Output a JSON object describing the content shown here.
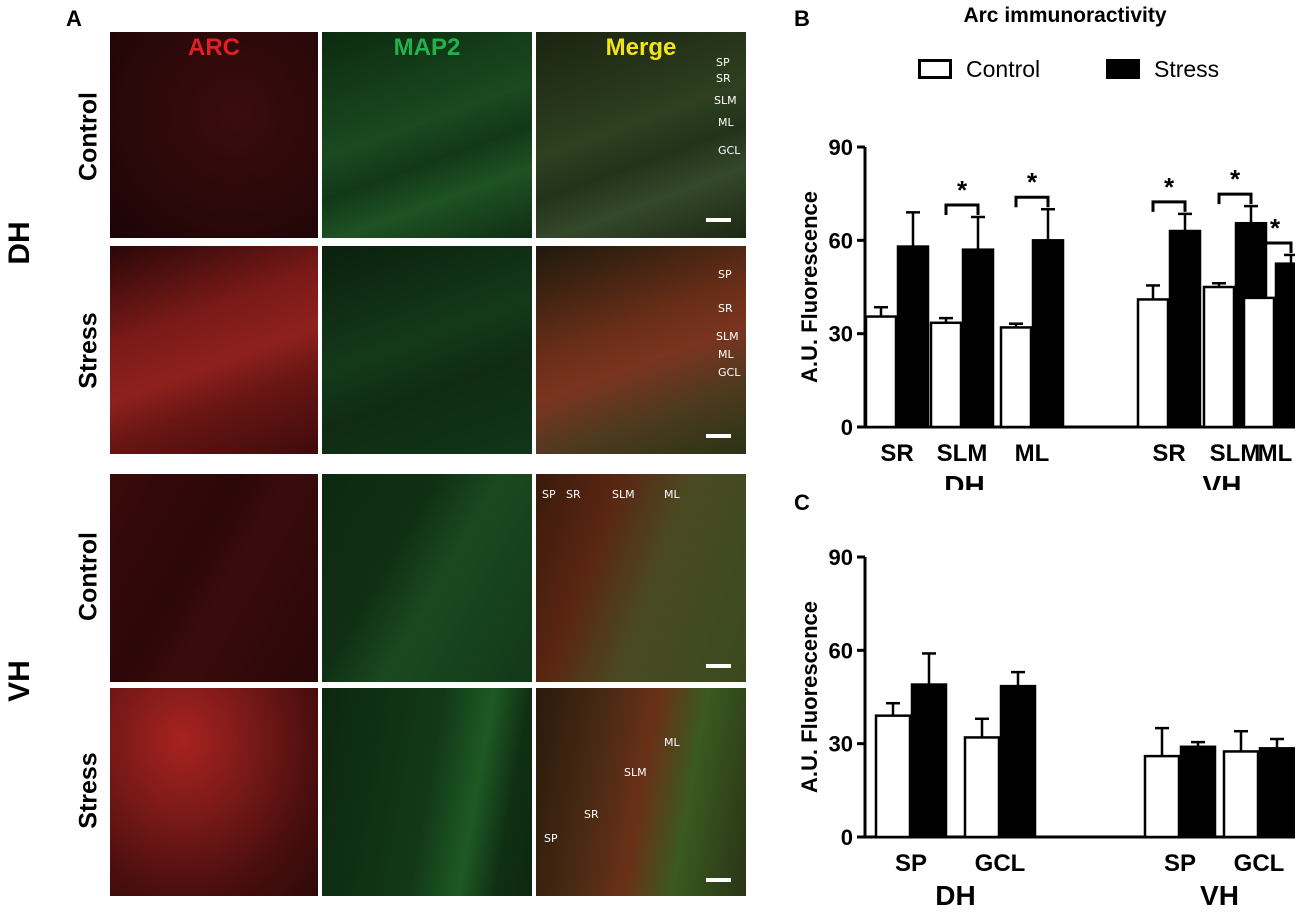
{
  "panel_a": {
    "letter": "A",
    "channels": [
      {
        "label": "ARC",
        "color": "#e31e24"
      },
      {
        "label": "MAP2",
        "color": "#22b14c"
      },
      {
        "label": "Merge",
        "color": "#f2e31b"
      }
    ],
    "groups": [
      {
        "label": "DH",
        "conditions": [
          "Control",
          "Stress"
        ]
      },
      {
        "label": "VH",
        "conditions": [
          "Control",
          "Stress"
        ]
      }
    ],
    "layer_labels": {
      "dh_control": [
        "SP",
        "SR",
        "SLM",
        "ML",
        "GCL"
      ],
      "dh_stress": [
        "SP",
        "SR",
        "SLM",
        "ML",
        "GCL"
      ],
      "vh_control": [
        "SP",
        "SR",
        "SLM",
        "ML"
      ],
      "vh_stress": [
        "ML",
        "SLM",
        "SR",
        "SP"
      ]
    }
  },
  "panel_b_letter": "B",
  "panel_c_letter": "C",
  "figure_title": "Arc immunoractivity",
  "legend": [
    {
      "label": "Control",
      "fill": "#ffffff"
    },
    {
      "label": "Stress",
      "fill": "#000000"
    }
  ],
  "chart_data": [
    {
      "type": "bar",
      "panel": "B",
      "ylabel": "A.U. Fluorescence",
      "ylim": [
        0,
        90
      ],
      "yticks": [
        0,
        30,
        60,
        90
      ],
      "groups": [
        {
          "label": "DH",
          "categories": [
            "SR",
            "SLM",
            "ML"
          ]
        },
        {
          "label": "VH",
          "categories": [
            "SR",
            "SLM",
            "ML"
          ]
        }
      ],
      "series": [
        {
          "name": "Control",
          "values": [
            35.5,
            33.5,
            32,
            41,
            45,
            41.5
          ],
          "errors": [
            3,
            1.5,
            1.2,
            4.5,
            1.2,
            2.2
          ]
        },
        {
          "name": "Stress",
          "values": [
            58,
            57,
            60,
            63,
            65.5,
            52.5
          ],
          "errors": [
            11,
            10.5,
            10,
            5.5,
            5.5,
            2.8
          ]
        }
      ],
      "significance": [
        false,
        true,
        true,
        true,
        true,
        true
      ],
      "significance_marker": "*"
    },
    {
      "type": "bar",
      "panel": "C",
      "ylabel": "A.U. Fluorescence",
      "ylim": [
        0,
        90
      ],
      "yticks": [
        0,
        30,
        60,
        90
      ],
      "groups": [
        {
          "label": "DH",
          "categories": [
            "SP",
            "GCL"
          ]
        },
        {
          "label": "VH",
          "categories": [
            "SP",
            "GCL"
          ]
        }
      ],
      "series": [
        {
          "name": "Control",
          "values": [
            39,
            32,
            26,
            27.5
          ],
          "errors": [
            4,
            6,
            9,
            6.5
          ]
        },
        {
          "name": "Stress",
          "values": [
            49,
            48.5,
            29,
            28.5
          ],
          "errors": [
            10,
            4.5,
            1.5,
            3
          ]
        }
      ],
      "significance": [
        false,
        false,
        false,
        false
      ],
      "significance_marker": "*"
    }
  ]
}
